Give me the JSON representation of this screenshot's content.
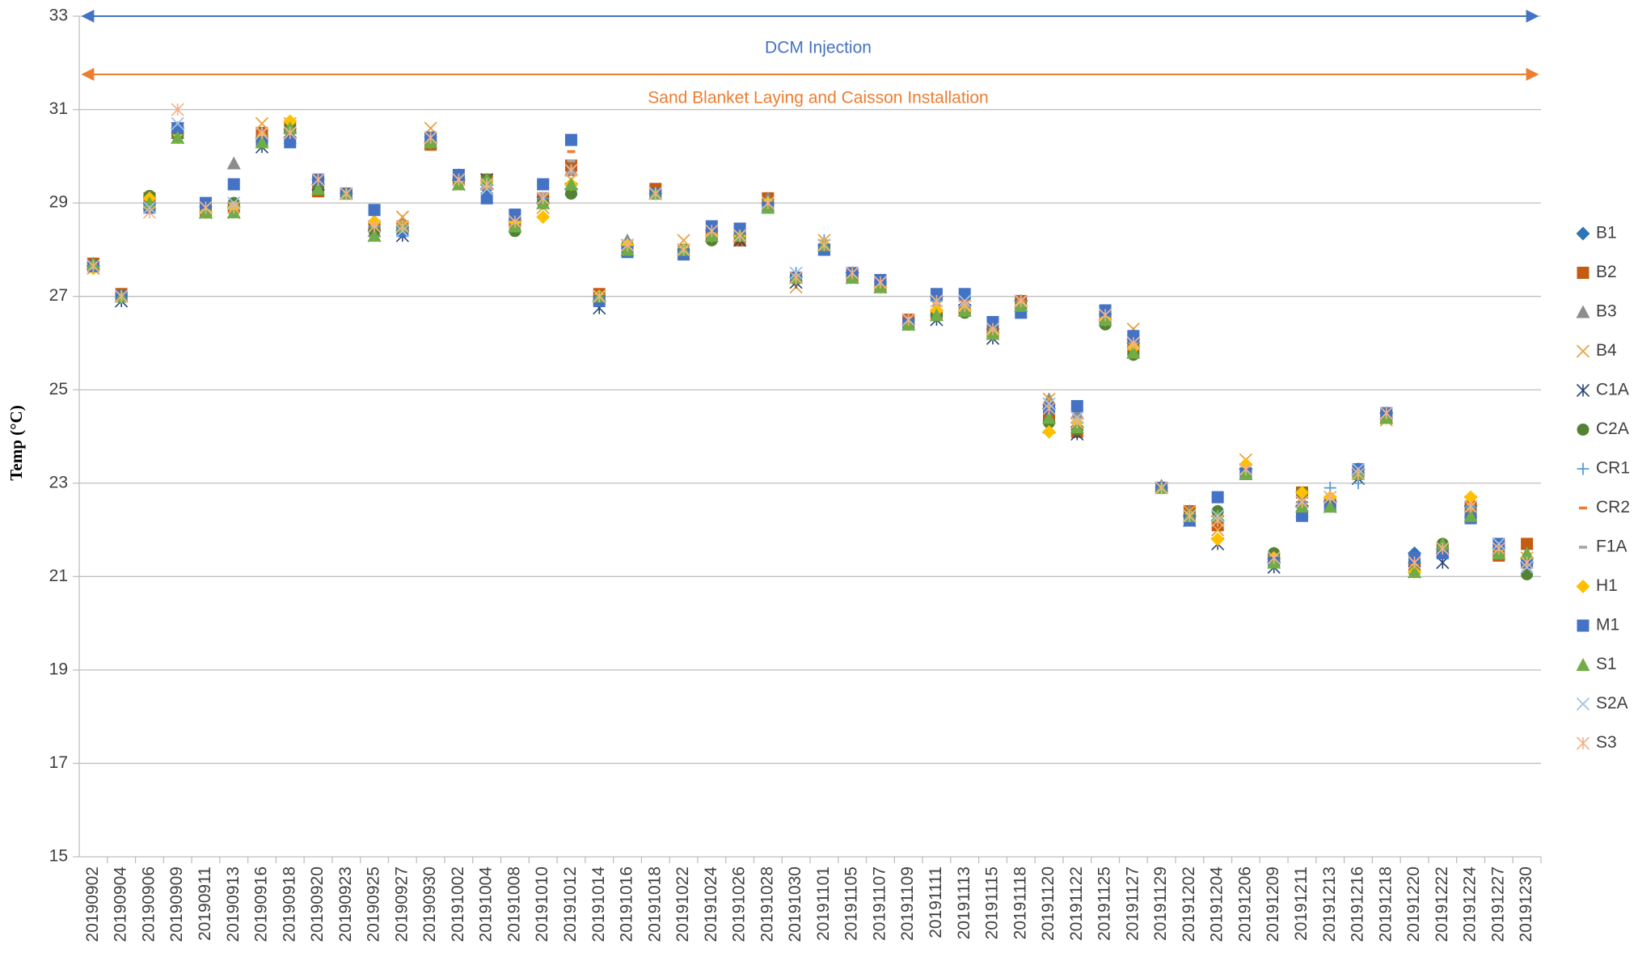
{
  "chart_data": {
    "type": "scatter",
    "y_label": "Temp (°C)",
    "ylim": [
      15,
      33
    ],
    "yticks": [
      15,
      17,
      19,
      21,
      23,
      25,
      27,
      29,
      31,
      33
    ],
    "grid": true,
    "legend": "right",
    "annotations": [
      {
        "text": "DCM Injection",
        "color": "#4472c4"
      },
      {
        "text": "Sand Blanket Laying and Caisson Installation",
        "color": "#ed7d31"
      }
    ],
    "categories": [
      "20190902",
      "20190904",
      "20190906",
      "20190909",
      "20190911",
      "20190913",
      "20190916",
      "20190918",
      "20190920",
      "20190923",
      "20190925",
      "20190927",
      "20190930",
      "20191002",
      "20191004",
      "20191008",
      "20191010",
      "20191012",
      "20191014",
      "20191016",
      "20191018",
      "20191022",
      "20191024",
      "20191026",
      "20191028",
      "20191030",
      "20191101",
      "20191105",
      "20191107",
      "20191109",
      "20191111",
      "20191113",
      "20191115",
      "20191118",
      "20191120",
      "20191122",
      "20191125",
      "20191127",
      "20191129",
      "20191202",
      "20191204",
      "20191206",
      "20191209",
      "20191211",
      "20191213",
      "20191216",
      "20191218",
      "20191220",
      "20191222",
      "20191224",
      "20191227",
      "20191230"
    ],
    "series": [
      {
        "name": "B1",
        "color": "#2e75b6",
        "marker": "diamond",
        "values": [
          27.65,
          27.0,
          29.0,
          30.6,
          28.8,
          28.9,
          30.4,
          30.4,
          29.4,
          29.2,
          28.4,
          28.4,
          30.3,
          29.5,
          29.3,
          28.6,
          29.0,
          29.3,
          26.9,
          28.1,
          29.2,
          28.0,
          28.3,
          28.3,
          29.0,
          27.4,
          28.1,
          27.5,
          27.2,
          26.4,
          27.0,
          26.8,
          26.3,
          26.9,
          24.6,
          24.2,
          26.5,
          26.0,
          22.9,
          22.3,
          22.2,
          23.3,
          21.3,
          22.5,
          22.6,
          23.3,
          24.5,
          21.5,
          21.5,
          22.5,
          21.6,
          21.3
        ]
      },
      {
        "name": "B2",
        "color": "#c55a11",
        "marker": "square",
        "values": [
          27.7,
          27.05,
          29.1,
          30.5,
          28.8,
          28.9,
          30.5,
          30.6,
          29.25,
          29.2,
          28.5,
          28.5,
          30.25,
          29.5,
          29.5,
          28.6,
          29.1,
          29.8,
          27.05,
          28.0,
          29.3,
          27.9,
          28.3,
          28.2,
          29.1,
          27.4,
          28.0,
          27.4,
          27.2,
          26.5,
          26.6,
          26.7,
          26.2,
          26.9,
          24.4,
          24.1,
          26.5,
          25.9,
          22.9,
          22.4,
          22.1,
          23.2,
          21.4,
          22.8,
          22.6,
          23.2,
          24.4,
          21.2,
          21.6,
          22.5,
          21.45,
          21.7
        ]
      },
      {
        "name": "B3",
        "color": "#8c8c8c",
        "marker": "triangle",
        "values": [
          27.7,
          27.0,
          29.0,
          30.5,
          28.8,
          29.85,
          30.5,
          30.7,
          29.4,
          29.2,
          28.4,
          28.6,
          30.4,
          29.6,
          29.4,
          28.5,
          29.1,
          29.7,
          27.0,
          28.2,
          29.2,
          28.0,
          28.3,
          28.3,
          29.1,
          27.4,
          28.1,
          27.5,
          27.2,
          26.5,
          26.7,
          26.8,
          26.3,
          26.9,
          24.8,
          24.5,
          26.6,
          26.2,
          22.95,
          22.4,
          22.4,
          23.3,
          21.5,
          22.6,
          22.7,
          23.3,
          24.5,
          21.4,
          21.6,
          22.5,
          21.6,
          21.5
        ]
      },
      {
        "name": "B4",
        "color": "#e8a33d",
        "marker": "x",
        "values": [
          27.6,
          27.0,
          28.9,
          30.6,
          28.8,
          28.8,
          30.7,
          30.7,
          29.5,
          29.2,
          28.5,
          28.7,
          30.6,
          29.5,
          29.5,
          28.5,
          28.9,
          29.5,
          27.0,
          28.1,
          29.2,
          28.2,
          28.4,
          28.3,
          29.0,
          27.2,
          28.2,
          27.5,
          27.3,
          26.5,
          26.8,
          26.8,
          26.3,
          26.8,
          24.8,
          24.4,
          26.6,
          26.3,
          22.9,
          22.4,
          22.0,
          23.5,
          21.4,
          22.7,
          22.7,
          23.2,
          24.35,
          21.2,
          21.6,
          22.6,
          21.7,
          21.4
        ]
      },
      {
        "name": "C1A",
        "color": "#264478",
        "marker": "asterisk",
        "values": [
          27.65,
          26.9,
          29.0,
          30.4,
          28.8,
          28.8,
          30.2,
          30.4,
          29.4,
          29.2,
          28.3,
          28.3,
          30.3,
          29.4,
          29.5,
          28.5,
          29.0,
          29.3,
          26.75,
          28.0,
          29.2,
          28.0,
          28.3,
          28.2,
          29.0,
          27.3,
          28.1,
          27.4,
          27.2,
          26.4,
          26.5,
          26.7,
          26.1,
          26.8,
          24.2,
          24.05,
          26.5,
          25.8,
          22.9,
          22.2,
          21.7,
          23.2,
          21.2,
          22.4,
          22.5,
          23.1,
          24.4,
          21.1,
          21.3,
          22.4,
          21.6,
          21.2
        ]
      },
      {
        "name": "C2A",
        "color": "#548235",
        "marker": "circle",
        "values": [
          27.65,
          27.0,
          29.15,
          30.45,
          28.85,
          29.0,
          30.3,
          30.6,
          29.4,
          29.2,
          28.4,
          28.4,
          30.3,
          29.5,
          29.5,
          28.4,
          29.0,
          29.2,
          26.9,
          28.1,
          29.2,
          28.0,
          28.2,
          28.3,
          29.0,
          27.4,
          28.0,
          27.4,
          27.2,
          26.4,
          26.6,
          26.65,
          26.2,
          26.8,
          24.3,
          24.15,
          26.4,
          25.75,
          22.9,
          22.3,
          22.4,
          23.2,
          21.5,
          22.8,
          22.6,
          23.2,
          24.4,
          21.1,
          21.7,
          22.4,
          21.6,
          21.05
        ]
      },
      {
        "name": "CR1",
        "color": "#5b9bd5",
        "marker": "plus",
        "values": [
          27.65,
          27.0,
          29.0,
          30.6,
          28.8,
          28.9,
          30.4,
          30.5,
          29.5,
          29.2,
          28.5,
          28.5,
          30.4,
          29.5,
          29.4,
          28.6,
          29.1,
          29.4,
          26.9,
          28.2,
          29.2,
          28.0,
          28.4,
          28.4,
          29.0,
          27.5,
          28.2,
          27.5,
          27.2,
          26.5,
          26.9,
          26.9,
          26.4,
          26.9,
          24.5,
          24.3,
          26.6,
          26.0,
          22.9,
          22.3,
          22.2,
          23.3,
          21.4,
          22.6,
          22.9,
          23.0,
          24.5,
          21.3,
          21.5,
          22.5,
          21.6,
          21.3
        ]
      },
      {
        "name": "CR2",
        "color": "#ed7d31",
        "marker": "dash",
        "values": [
          27.65,
          27.0,
          29.0,
          30.7,
          28.85,
          28.9,
          30.5,
          30.5,
          29.4,
          29.2,
          28.6,
          28.5,
          30.3,
          29.5,
          29.4,
          28.6,
          29.2,
          30.1,
          27.0,
          28.1,
          29.2,
          28.0,
          28.3,
          28.3,
          29.0,
          27.4,
          28.1,
          27.5,
          27.3,
          26.5,
          26.8,
          26.9,
          26.3,
          26.9,
          24.6,
          24.3,
          26.6,
          26.1,
          22.9,
          22.3,
          22.2,
          23.3,
          21.4,
          22.5,
          22.6,
          23.2,
          24.4,
          21.3,
          21.6,
          22.4,
          21.6,
          21.4
        ]
      },
      {
        "name": "F1A",
        "color": "#a5a5a5",
        "marker": "dash",
        "values": [
          27.65,
          27.0,
          29.0,
          30.6,
          28.9,
          29.0,
          30.4,
          30.5,
          29.4,
          29.2,
          28.5,
          28.5,
          30.35,
          29.5,
          29.4,
          28.6,
          29.2,
          29.9,
          26.95,
          28.1,
          29.2,
          28.0,
          28.35,
          28.3,
          29.0,
          27.4,
          28.1,
          27.45,
          27.25,
          26.45,
          26.8,
          26.8,
          26.3,
          26.85,
          24.5,
          24.3,
          26.5,
          26.0,
          22.9,
          22.3,
          22.2,
          23.3,
          21.4,
          22.5,
          22.6,
          23.2,
          24.45,
          21.3,
          21.55,
          22.45,
          21.6,
          21.3
        ]
      },
      {
        "name": "H1",
        "color": "#ffc000",
        "marker": "diamond",
        "values": [
          27.6,
          27.0,
          29.1,
          30.5,
          28.8,
          28.9,
          30.4,
          30.75,
          29.5,
          29.2,
          28.6,
          28.5,
          30.3,
          29.5,
          29.45,
          28.6,
          28.7,
          29.4,
          27.0,
          28.1,
          29.2,
          28.0,
          28.3,
          28.3,
          29.0,
          27.4,
          28.1,
          27.45,
          27.2,
          26.4,
          26.7,
          26.7,
          26.2,
          26.8,
          24.1,
          24.3,
          26.5,
          25.9,
          22.9,
          22.3,
          21.8,
          23.4,
          21.4,
          22.8,
          22.7,
          23.2,
          24.4,
          21.1,
          21.6,
          22.7,
          21.6,
          21.4
        ]
      },
      {
        "name": "M1",
        "color": "#4472c4",
        "marker": "square",
        "values": [
          27.65,
          27.0,
          28.9,
          30.6,
          29.0,
          29.4,
          30.3,
          30.3,
          29.5,
          29.2,
          28.85,
          28.4,
          30.4,
          29.6,
          29.1,
          28.75,
          29.4,
          30.35,
          26.9,
          27.95,
          29.2,
          27.9,
          28.5,
          28.45,
          28.9,
          27.4,
          28.0,
          27.5,
          27.35,
          26.4,
          27.05,
          27.05,
          26.45,
          26.65,
          24.6,
          24.65,
          26.7,
          26.15,
          22.9,
          22.2,
          22.7,
          23.2,
          21.3,
          22.3,
          22.5,
          23.3,
          24.5,
          21.4,
          21.5,
          22.25,
          21.7,
          21.3
        ]
      },
      {
        "name": "S1",
        "color": "#70ad47",
        "marker": "triangle",
        "values": [
          27.7,
          27.0,
          29.0,
          30.4,
          28.8,
          28.8,
          30.3,
          30.6,
          29.3,
          29.2,
          28.3,
          28.5,
          30.3,
          29.4,
          29.5,
          28.5,
          29.0,
          29.4,
          27.0,
          28.0,
          29.2,
          28.0,
          28.3,
          28.3,
          28.9,
          27.4,
          28.1,
          27.4,
          27.2,
          26.4,
          26.6,
          26.7,
          26.2,
          26.8,
          24.4,
          24.2,
          26.5,
          25.8,
          22.9,
          22.3,
          22.3,
          23.2,
          21.3,
          22.5,
          22.5,
          23.2,
          24.4,
          21.1,
          21.7,
          22.3,
          21.5,
          21.5
        ]
      },
      {
        "name": "S2A",
        "color": "#9dc3e6",
        "marker": "x",
        "values": [
          27.65,
          27.0,
          28.9,
          30.7,
          28.9,
          29.0,
          30.5,
          30.5,
          29.5,
          29.2,
          28.5,
          28.4,
          30.4,
          29.5,
          29.3,
          28.6,
          29.1,
          29.7,
          27.0,
          28.1,
          29.2,
          28.0,
          28.4,
          28.3,
          29.0,
          27.5,
          28.1,
          27.5,
          27.3,
          26.5,
          26.9,
          26.9,
          26.3,
          26.9,
          24.7,
          24.4,
          26.6,
          26.0,
          22.9,
          22.3,
          22.3,
          23.3,
          21.4,
          22.6,
          22.7,
          23.3,
          24.5,
          21.3,
          21.6,
          22.5,
          21.7,
          21.2
        ]
      },
      {
        "name": "S3",
        "color": "#f4b183",
        "marker": "asterisk",
        "values": [
          27.65,
          27.0,
          28.8,
          31.0,
          28.9,
          28.9,
          30.5,
          30.5,
          29.5,
          29.2,
          28.5,
          28.5,
          30.4,
          29.5,
          29.4,
          28.6,
          29.1,
          29.7,
          27.0,
          28.1,
          29.2,
          28.0,
          28.4,
          28.3,
          29.0,
          27.4,
          28.1,
          27.5,
          27.3,
          26.5,
          26.9,
          26.8,
          26.3,
          26.9,
          24.6,
          24.3,
          26.6,
          26.0,
          22.9,
          22.3,
          22.2,
          23.3,
          21.4,
          22.6,
          22.7,
          23.2,
          24.5,
          21.3,
          21.6,
          22.5,
          21.6,
          21.3
        ]
      }
    ]
  }
}
